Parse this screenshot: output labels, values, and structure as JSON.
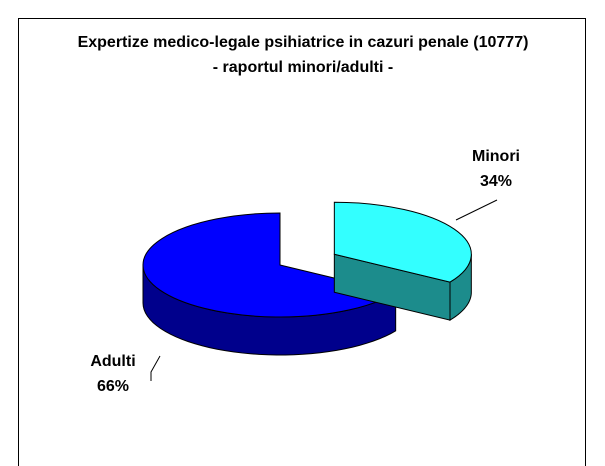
{
  "chart_data": {
    "type": "pie",
    "title": "Expertize medico-legale psihiatrice in cazuri penale (10777) - raportul minori/adulti -",
    "categories": [
      "Minori",
      "Adulti"
    ],
    "values": [
      34,
      66
    ],
    "value_labels": [
      "34%",
      "66%"
    ],
    "colors": [
      "#33ffff",
      "#0000ff"
    ]
  }
}
